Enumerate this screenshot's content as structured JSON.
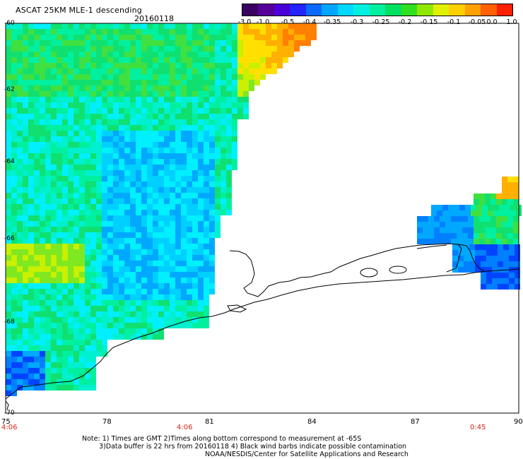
{
  "header": {
    "title": "ASCAT 25KM MLE-1 descending",
    "date": "20160118"
  },
  "colorbar": {
    "labels": [
      "-3.0",
      "-1.0",
      "-0.5",
      "-0.4",
      "-0.35",
      "-0.3",
      "-0.25",
      "-0.2",
      "-0.15",
      "-0.1",
      "-0.05",
      "0.0",
      "1.0"
    ],
    "colors": [
      "#3a0062",
      "#56009a",
      "#4a00d8",
      "#2424ff",
      "#0a6aff",
      "#00a6ff",
      "#00d8ff",
      "#00f0e0",
      "#00f0a0",
      "#00e060",
      "#30e020",
      "#90e800",
      "#e0f000",
      "#ffd000",
      "#ffa000",
      "#ff6000",
      "#ff2000"
    ]
  },
  "map": {
    "lat_labels": [
      "-60",
      "-62",
      "-64",
      "-66",
      "-68",
      "-70"
    ],
    "lon_labels": [
      "75",
      "78",
      "81",
      "84",
      "87",
      "90"
    ],
    "time_labels": [
      "4:06",
      "4:06",
      "0:45"
    ]
  },
  "notes": {
    "line1": "Note: 1) Times are GMT 2)Times along bottom correspond to measurement at -65S",
    "line2": "3)Data buffer is 22 hrs from 20160118 4) Black wind barbs indicate possible contamination",
    "line3": "NOAA/NESDIS/Center for Satellite Applications and Research"
  }
}
